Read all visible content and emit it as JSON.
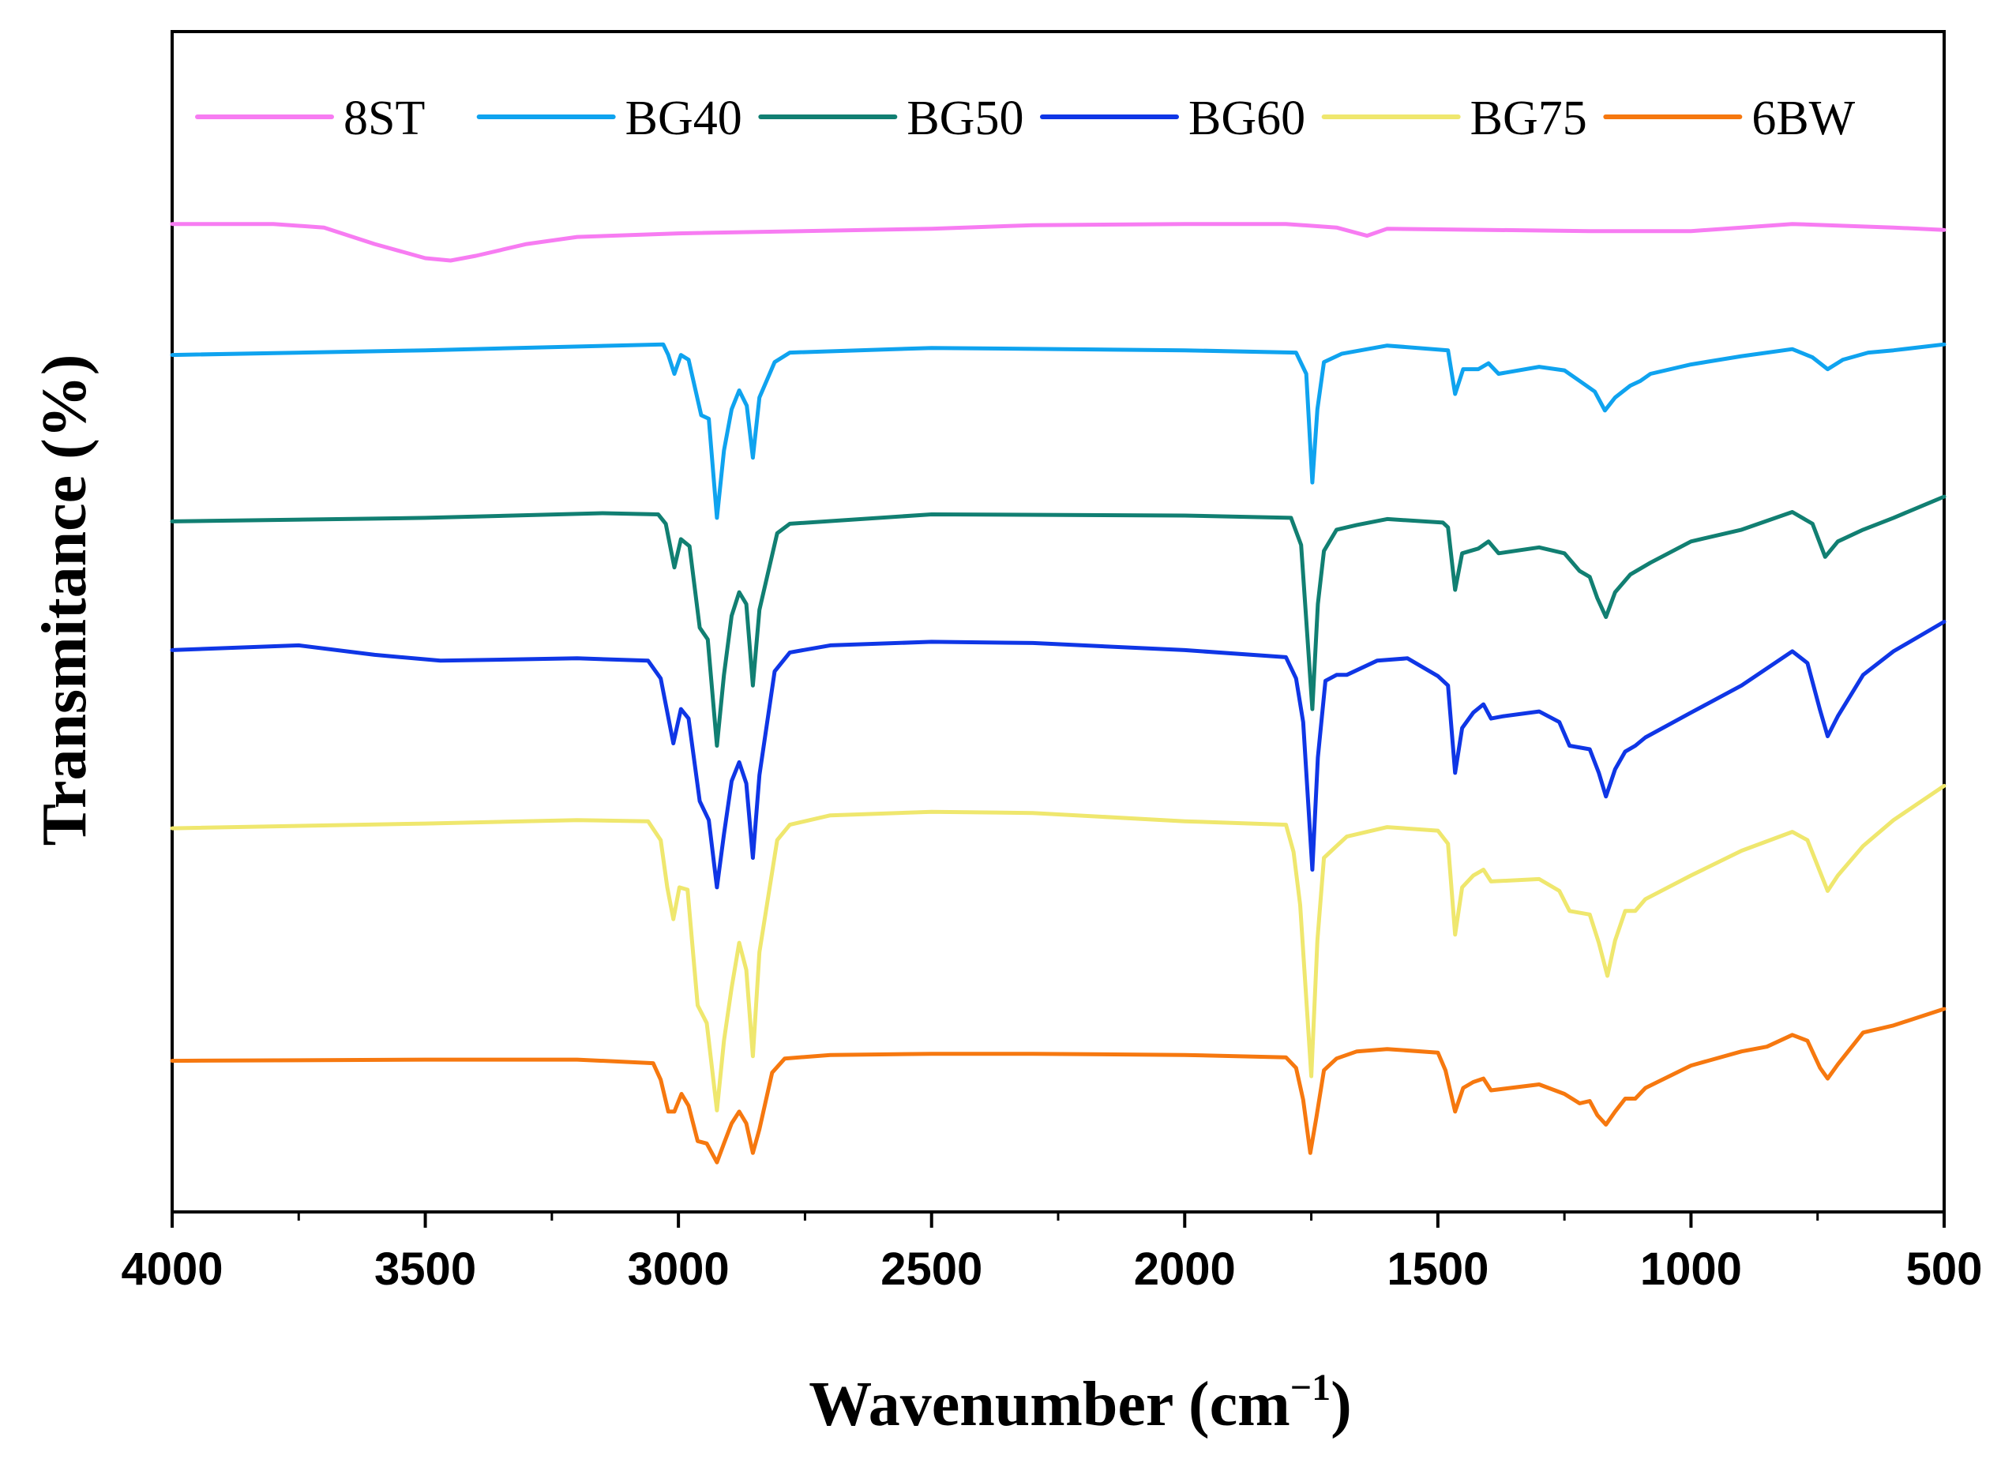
{
  "chart_data": {
    "type": "line",
    "title": "",
    "xlabel": "Wavenumber (cm",
    "xlabel_sup": "−1",
    "xlabel_close": ")",
    "ylabel": "Transmitance (%)",
    "xlim": [
      4000,
      500
    ],
    "ylim": [
      0,
      100
    ],
    "x_ticks": [
      "4000",
      "3500",
      "3000",
      "2500",
      "2000",
      "1500",
      "1000",
      "500"
    ],
    "x_tick_values": [
      4000,
      3500,
      3000,
      2500,
      2000,
      1500,
      1000,
      500
    ],
    "y_ticks_shown": false,
    "grid": false,
    "legend_position": "top",
    "series": [
      {
        "name": "8ST",
        "color": "#f77cf2",
        "points": [
          [
            4000,
            83.7
          ],
          [
            3800,
            83.7
          ],
          [
            3700,
            83.4
          ],
          [
            3600,
            82
          ],
          [
            3500,
            80.8
          ],
          [
            3450,
            80.6
          ],
          [
            3400,
            81
          ],
          [
            3300,
            82
          ],
          [
            3200,
            82.6
          ],
          [
            3000,
            82.9
          ],
          [
            2500,
            83.3
          ],
          [
            2300,
            83.6
          ],
          [
            2000,
            83.7
          ],
          [
            1800,
            83.7
          ],
          [
            1700,
            83.4
          ],
          [
            1640,
            82.7
          ],
          [
            1600,
            83.3
          ],
          [
            1400,
            83.2
          ],
          [
            1200,
            83.1
          ],
          [
            1000,
            83.1
          ],
          [
            800,
            83.7
          ],
          [
            600,
            83.4
          ],
          [
            500,
            83.2
          ]
        ]
      },
      {
        "name": "BG40",
        "color": "#0fa3ef",
        "points": [
          [
            4000,
            72.6
          ],
          [
            3500,
            73
          ],
          [
            3030,
            73.5
          ],
          [
            3020,
            72.6
          ],
          [
            3008,
            71
          ],
          [
            2995,
            72.6
          ],
          [
            2980,
            72.2
          ],
          [
            2955,
            67.5
          ],
          [
            2940,
            67.2
          ],
          [
            2924,
            58.8
          ],
          [
            2910,
            64.5
          ],
          [
            2895,
            68
          ],
          [
            2880,
            69.6
          ],
          [
            2865,
            68.3
          ],
          [
            2853,
            63.9
          ],
          [
            2840,
            69
          ],
          [
            2810,
            72
          ],
          [
            2780,
            72.8
          ],
          [
            2500,
            73.2
          ],
          [
            2000,
            73
          ],
          [
            1780,
            72.8
          ],
          [
            1760,
            71
          ],
          [
            1748,
            61.8
          ],
          [
            1738,
            68
          ],
          [
            1725,
            72
          ],
          [
            1690,
            72.7
          ],
          [
            1600,
            73.4
          ],
          [
            1480,
            73
          ],
          [
            1466,
            69.3
          ],
          [
            1450,
            71.4
          ],
          [
            1420,
            71.4
          ],
          [
            1400,
            71.9
          ],
          [
            1380,
            71
          ],
          [
            1300,
            71.6
          ],
          [
            1250,
            71.3
          ],
          [
            1220,
            70.4
          ],
          [
            1190,
            69.5
          ],
          [
            1170,
            67.9
          ],
          [
            1150,
            69
          ],
          [
            1120,
            70
          ],
          [
            1100,
            70.4
          ],
          [
            1080,
            71
          ],
          [
            1000,
            71.8
          ],
          [
            900,
            72.5
          ],
          [
            800,
            73.1
          ],
          [
            760,
            72.4
          ],
          [
            730,
            71.4
          ],
          [
            700,
            72.2
          ],
          [
            650,
            72.8
          ],
          [
            600,
            73
          ],
          [
            500,
            73.5
          ]
        ]
      },
      {
        "name": "BG50",
        "color": "#117f72",
        "points": [
          [
            4000,
            58.5
          ],
          [
            3500,
            58.8
          ],
          [
            3150,
            59.2
          ],
          [
            3040,
            59.1
          ],
          [
            3025,
            58.3
          ],
          [
            3008,
            54.6
          ],
          [
            2995,
            57
          ],
          [
            2978,
            56.4
          ],
          [
            2958,
            49.5
          ],
          [
            2942,
            48.5
          ],
          [
            2924,
            39.5
          ],
          [
            2910,
            45.5
          ],
          [
            2895,
            50.5
          ],
          [
            2880,
            52.5
          ],
          [
            2866,
            51.5
          ],
          [
            2853,
            44.6
          ],
          [
            2840,
            51
          ],
          [
            2805,
            57.5
          ],
          [
            2780,
            58.3
          ],
          [
            2500,
            59.1
          ],
          [
            2000,
            59
          ],
          [
            1790,
            58.8
          ],
          [
            1770,
            56.5
          ],
          [
            1748,
            42.6
          ],
          [
            1737,
            51.5
          ],
          [
            1725,
            56
          ],
          [
            1700,
            57.8
          ],
          [
            1660,
            58.2
          ],
          [
            1600,
            58.7
          ],
          [
            1490,
            58.4
          ],
          [
            1480,
            58
          ],
          [
            1466,
            52.7
          ],
          [
            1452,
            55.8
          ],
          [
            1420,
            56.2
          ],
          [
            1400,
            56.8
          ],
          [
            1380,
            55.8
          ],
          [
            1300,
            56.3
          ],
          [
            1250,
            55.8
          ],
          [
            1220,
            54.3
          ],
          [
            1200,
            53.8
          ],
          [
            1185,
            52
          ],
          [
            1168,
            50.4
          ],
          [
            1150,
            52.5
          ],
          [
            1120,
            54
          ],
          [
            1100,
            54.5
          ],
          [
            1080,
            55
          ],
          [
            1000,
            56.8
          ],
          [
            900,
            57.8
          ],
          [
            800,
            59.3
          ],
          [
            760,
            58.3
          ],
          [
            735,
            55.5
          ],
          [
            710,
            56.8
          ],
          [
            660,
            57.8
          ],
          [
            600,
            58.8
          ],
          [
            500,
            60.6
          ]
        ]
      },
      {
        "name": "BG60",
        "color": "#0f36e6",
        "points": [
          [
            4000,
            47.6
          ],
          [
            3750,
            48
          ],
          [
            3600,
            47.2
          ],
          [
            3470,
            46.7
          ],
          [
            3200,
            46.9
          ],
          [
            3060,
            46.7
          ],
          [
            3035,
            45.2
          ],
          [
            3010,
            39.7
          ],
          [
            2995,
            42.6
          ],
          [
            2980,
            41.8
          ],
          [
            2958,
            34.8
          ],
          [
            2940,
            33.2
          ],
          [
            2924,
            27.5
          ],
          [
            2910,
            32
          ],
          [
            2895,
            36.5
          ],
          [
            2880,
            38.1
          ],
          [
            2866,
            36.3
          ],
          [
            2853,
            30
          ],
          [
            2840,
            37
          ],
          [
            2810,
            45.8
          ],
          [
            2780,
            47.4
          ],
          [
            2700,
            48
          ],
          [
            2500,
            48.3
          ],
          [
            2300,
            48.2
          ],
          [
            2000,
            47.6
          ],
          [
            1800,
            47
          ],
          [
            1780,
            45.2
          ],
          [
            1766,
            41.5
          ],
          [
            1748,
            29
          ],
          [
            1737,
            38.5
          ],
          [
            1722,
            45
          ],
          [
            1700,
            45.5
          ],
          [
            1680,
            45.5
          ],
          [
            1620,
            46.7
          ],
          [
            1560,
            46.9
          ],
          [
            1500,
            45.4
          ],
          [
            1480,
            44.6
          ],
          [
            1466,
            37.2
          ],
          [
            1452,
            41
          ],
          [
            1430,
            42.3
          ],
          [
            1410,
            43
          ],
          [
            1395,
            41.8
          ],
          [
            1370,
            42
          ],
          [
            1300,
            42.4
          ],
          [
            1260,
            41.5
          ],
          [
            1240,
            39.5
          ],
          [
            1200,
            39.2
          ],
          [
            1182,
            37.2
          ],
          [
            1168,
            35.2
          ],
          [
            1150,
            37.5
          ],
          [
            1130,
            39
          ],
          [
            1110,
            39.5
          ],
          [
            1090,
            40.2
          ],
          [
            1000,
            42.3
          ],
          [
            900,
            44.6
          ],
          [
            800,
            47.5
          ],
          [
            770,
            46.5
          ],
          [
            745,
            42.5
          ],
          [
            730,
            40.3
          ],
          [
            710,
            42
          ],
          [
            660,
            45.5
          ],
          [
            600,
            47.5
          ],
          [
            500,
            50
          ]
        ]
      },
      {
        "name": "BG75",
        "color": "#efe76e",
        "points": [
          [
            4000,
            32.5
          ],
          [
            3500,
            32.9
          ],
          [
            3200,
            33.2
          ],
          [
            3060,
            33.1
          ],
          [
            3035,
            31.5
          ],
          [
            3022,
            27.5
          ],
          [
            3010,
            24.8
          ],
          [
            2998,
            27.5
          ],
          [
            2982,
            27.3
          ],
          [
            2962,
            17.5
          ],
          [
            2944,
            16
          ],
          [
            2924,
            8.6
          ],
          [
            2910,
            14.5
          ],
          [
            2895,
            19
          ],
          [
            2880,
            22.8
          ],
          [
            2866,
            20.5
          ],
          [
            2853,
            13.2
          ],
          [
            2840,
            22
          ],
          [
            2805,
            31.5
          ],
          [
            2780,
            32.8
          ],
          [
            2700,
            33.6
          ],
          [
            2500,
            33.9
          ],
          [
            2300,
            33.8
          ],
          [
            2000,
            33.1
          ],
          [
            1800,
            32.8
          ],
          [
            1785,
            30.5
          ],
          [
            1772,
            26
          ],
          [
            1750,
            11.5
          ],
          [
            1738,
            23
          ],
          [
            1725,
            30
          ],
          [
            1700,
            31
          ],
          [
            1680,
            31.8
          ],
          [
            1600,
            32.6
          ],
          [
            1500,
            32.3
          ],
          [
            1480,
            31.2
          ],
          [
            1466,
            23.5
          ],
          [
            1452,
            27.5
          ],
          [
            1430,
            28.5
          ],
          [
            1410,
            29
          ],
          [
            1395,
            28
          ],
          [
            1300,
            28.2
          ],
          [
            1260,
            27.2
          ],
          [
            1240,
            25.5
          ],
          [
            1200,
            25.2
          ],
          [
            1182,
            22.8
          ],
          [
            1165,
            20
          ],
          [
            1150,
            23
          ],
          [
            1130,
            25.5
          ],
          [
            1110,
            25.5
          ],
          [
            1090,
            26.5
          ],
          [
            1000,
            28.5
          ],
          [
            900,
            30.6
          ],
          [
            800,
            32.2
          ],
          [
            770,
            31.5
          ],
          [
            745,
            28.8
          ],
          [
            730,
            27.2
          ],
          [
            710,
            28.5
          ],
          [
            660,
            31
          ],
          [
            600,
            33.2
          ],
          [
            500,
            36.1
          ]
        ]
      },
      {
        "name": "6BW",
        "color": "#f6780f",
        "points": [
          [
            4000,
            12.8
          ],
          [
            3500,
            12.9
          ],
          [
            3200,
            12.9
          ],
          [
            3050,
            12.6
          ],
          [
            3035,
            11.2
          ],
          [
            3020,
            8.5
          ],
          [
            3008,
            8.5
          ],
          [
            2994,
            10
          ],
          [
            2980,
            9
          ],
          [
            2962,
            6
          ],
          [
            2944,
            5.8
          ],
          [
            2924,
            4.2
          ],
          [
            2910,
            5.8
          ],
          [
            2895,
            7.5
          ],
          [
            2880,
            8.5
          ],
          [
            2866,
            7.5
          ],
          [
            2853,
            5
          ],
          [
            2840,
            7
          ],
          [
            2815,
            11.8
          ],
          [
            2790,
            13
          ],
          [
            2700,
            13.3
          ],
          [
            2500,
            13.4
          ],
          [
            2300,
            13.4
          ],
          [
            2000,
            13.3
          ],
          [
            1800,
            13.1
          ],
          [
            1780,
            12.2
          ],
          [
            1766,
            9.5
          ],
          [
            1752,
            5
          ],
          [
            1740,
            8
          ],
          [
            1725,
            12
          ],
          [
            1700,
            13
          ],
          [
            1660,
            13.6
          ],
          [
            1600,
            13.8
          ],
          [
            1500,
            13.5
          ],
          [
            1485,
            12
          ],
          [
            1466,
            8.5
          ],
          [
            1450,
            10.5
          ],
          [
            1430,
            11
          ],
          [
            1410,
            11.3
          ],
          [
            1395,
            10.3
          ],
          [
            1300,
            10.8
          ],
          [
            1250,
            10
          ],
          [
            1220,
            9.2
          ],
          [
            1200,
            9.4
          ],
          [
            1185,
            8.2
          ],
          [
            1168,
            7.4
          ],
          [
            1150,
            8.5
          ],
          [
            1130,
            9.6
          ],
          [
            1110,
            9.6
          ],
          [
            1090,
            10.5
          ],
          [
            1000,
            12.4
          ],
          [
            900,
            13.6
          ],
          [
            850,
            14
          ],
          [
            800,
            15
          ],
          [
            770,
            14.5
          ],
          [
            745,
            12.2
          ],
          [
            730,
            11.3
          ],
          [
            710,
            12.5
          ],
          [
            660,
            15.2
          ],
          [
            600,
            15.8
          ],
          [
            500,
            17.2
          ]
        ]
      }
    ]
  }
}
